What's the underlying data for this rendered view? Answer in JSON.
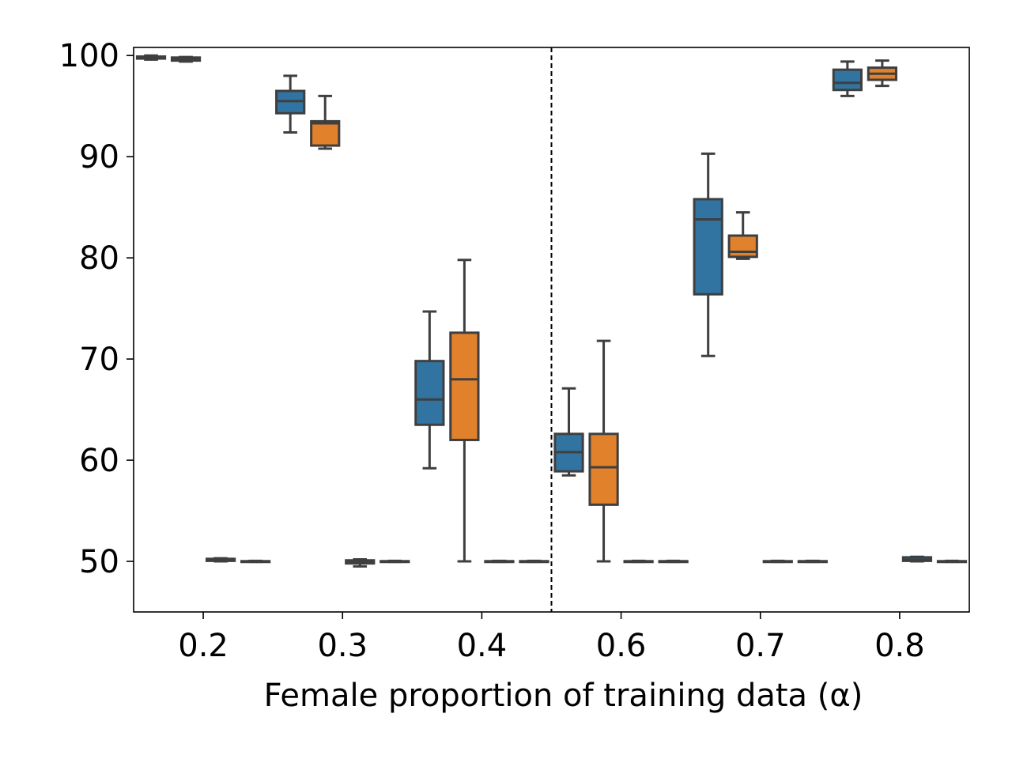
{
  "chart_data": {
    "type": "box",
    "title": "",
    "xlabel": "Female proportion of training data (α)",
    "ylabel": "",
    "ylim": [
      45,
      100.8
    ],
    "yticks": [
      50,
      60,
      70,
      80,
      90,
      100
    ],
    "categories": [
      "0.2",
      "0.3",
      "0.4",
      "0.6",
      "0.7",
      "0.8"
    ],
    "series_colors": [
      "#3274a1",
      "#e1812c"
    ],
    "median_line_color": "#3f3f3f",
    "separator": {
      "style": "dashed",
      "between": [
        "0.4",
        "0.6"
      ]
    },
    "groups": [
      {
        "category": "0.2",
        "boxes": [
          {
            "color_index": 0,
            "min": 99.6,
            "q1": 99.7,
            "median": 99.8,
            "q3": 99.9,
            "max": 100.0
          },
          {
            "color_index": 1,
            "min": 99.4,
            "q1": 99.5,
            "median": 99.65,
            "q3": 99.8,
            "max": 99.85
          },
          {
            "color_index": 0,
            "min": 50.0,
            "q1": 50.05,
            "median": 50.15,
            "q3": 50.25,
            "max": 50.3
          },
          {
            "color_index": 1,
            "min": 49.95,
            "q1": 49.98,
            "median": 50.0,
            "q3": 50.02,
            "max": 50.05
          }
        ]
      },
      {
        "category": "0.3",
        "boxes": [
          {
            "color_index": 0,
            "min": 92.4,
            "q1": 94.3,
            "median": 95.5,
            "q3": 96.5,
            "max": 98.0
          },
          {
            "color_index": 1,
            "min": 90.8,
            "q1": 91.1,
            "median": 93.3,
            "q3": 93.5,
            "max": 96.0
          },
          {
            "color_index": 0,
            "min": 49.5,
            "q1": 49.8,
            "median": 50.0,
            "q3": 50.1,
            "max": 50.2
          },
          {
            "color_index": 1,
            "min": 49.95,
            "q1": 49.98,
            "median": 50.0,
            "q3": 50.02,
            "max": 50.05
          }
        ]
      },
      {
        "category": "0.4",
        "boxes": [
          {
            "color_index": 0,
            "min": 59.2,
            "q1": 63.5,
            "median": 66.0,
            "q3": 69.8,
            "max": 74.7
          },
          {
            "color_index": 1,
            "min": 50.0,
            "q1": 62.0,
            "median": 68.0,
            "q3": 72.6,
            "max": 79.8
          },
          {
            "color_index": 0,
            "min": 49.95,
            "q1": 49.98,
            "median": 50.0,
            "q3": 50.02,
            "max": 50.05
          },
          {
            "color_index": 1,
            "min": 49.95,
            "q1": 49.98,
            "median": 50.0,
            "q3": 50.02,
            "max": 50.05
          }
        ]
      },
      {
        "category": "0.6",
        "boxes": [
          {
            "color_index": 0,
            "min": 58.5,
            "q1": 58.9,
            "median": 60.8,
            "q3": 62.6,
            "max": 67.1
          },
          {
            "color_index": 1,
            "min": 50.0,
            "q1": 55.6,
            "median": 59.3,
            "q3": 62.6,
            "max": 71.8
          },
          {
            "color_index": 0,
            "min": 49.95,
            "q1": 49.98,
            "median": 50.0,
            "q3": 50.02,
            "max": 50.05
          },
          {
            "color_index": 1,
            "min": 49.95,
            "q1": 49.98,
            "median": 50.0,
            "q3": 50.02,
            "max": 50.05
          }
        ]
      },
      {
        "category": "0.7",
        "boxes": [
          {
            "color_index": 0,
            "min": 70.3,
            "q1": 76.4,
            "median": 83.8,
            "q3": 85.8,
            "max": 90.3
          },
          {
            "color_index": 1,
            "min": 79.9,
            "q1": 80.1,
            "median": 80.6,
            "q3": 82.2,
            "max": 84.5
          },
          {
            "color_index": 0,
            "min": 49.95,
            "q1": 49.98,
            "median": 50.0,
            "q3": 50.02,
            "max": 50.05
          },
          {
            "color_index": 1,
            "min": 49.95,
            "q1": 49.98,
            "median": 50.0,
            "q3": 50.02,
            "max": 50.05
          }
        ]
      },
      {
        "category": "0.8",
        "boxes": [
          {
            "color_index": 0,
            "min": 96.0,
            "q1": 96.6,
            "median": 97.3,
            "q3": 98.6,
            "max": 99.4
          },
          {
            "color_index": 1,
            "min": 97.0,
            "q1": 97.6,
            "median": 98.2,
            "q3": 98.8,
            "max": 99.5
          },
          {
            "color_index": 0,
            "min": 50.0,
            "q1": 50.05,
            "median": 50.15,
            "q3": 50.4,
            "max": 50.45
          },
          {
            "color_index": 1,
            "min": 49.95,
            "q1": 49.98,
            "median": 50.0,
            "q3": 50.02,
            "max": 50.05
          }
        ]
      }
    ]
  }
}
